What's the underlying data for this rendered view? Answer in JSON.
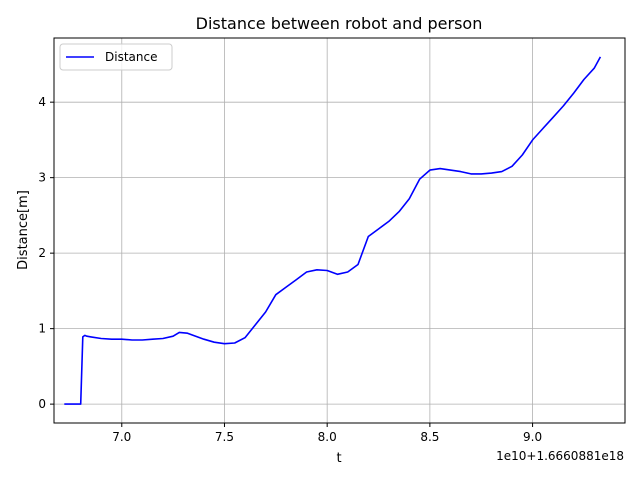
{
  "chart_data": {
    "type": "line",
    "title": "Distance between robot and person",
    "xlabel": "t",
    "ylabel": "Distance[m]",
    "x_offset_label": "1e10+1.6660881e18",
    "xlim": [
      6.67,
      9.45
    ],
    "ylim": [
      -0.25,
      4.85
    ],
    "x_ticks": [
      7.0,
      7.5,
      8.0,
      8.5,
      9.0
    ],
    "x_tick_labels": [
      "7.0",
      "7.5",
      "8.0",
      "8.5",
      "9.0"
    ],
    "y_ticks": [
      0,
      1,
      2,
      3,
      4
    ],
    "y_tick_labels": [
      "0",
      "1",
      "2",
      "3",
      "4"
    ],
    "grid": true,
    "legend_position": "upper-left",
    "series": [
      {
        "name": "Distance",
        "color": "#0000ff",
        "points": [
          [
            6.72,
            0.0
          ],
          [
            6.8,
            0.0
          ],
          [
            6.81,
            0.89
          ],
          [
            6.82,
            0.91
          ],
          [
            6.83,
            0.9
          ],
          [
            6.85,
            0.89
          ],
          [
            6.9,
            0.87
          ],
          [
            6.95,
            0.86
          ],
          [
            7.0,
            0.86
          ],
          [
            7.05,
            0.85
          ],
          [
            7.1,
            0.85
          ],
          [
            7.15,
            0.86
          ],
          [
            7.2,
            0.87
          ],
          [
            7.25,
            0.9
          ],
          [
            7.28,
            0.95
          ],
          [
            7.32,
            0.94
          ],
          [
            7.4,
            0.86
          ],
          [
            7.45,
            0.82
          ],
          [
            7.5,
            0.8
          ],
          [
            7.55,
            0.81
          ],
          [
            7.6,
            0.88
          ],
          [
            7.65,
            1.05
          ],
          [
            7.7,
            1.22
          ],
          [
            7.75,
            1.45
          ],
          [
            7.8,
            1.55
          ],
          [
            7.85,
            1.65
          ],
          [
            7.9,
            1.75
          ],
          [
            7.95,
            1.78
          ],
          [
            8.0,
            1.77
          ],
          [
            8.05,
            1.72
          ],
          [
            8.1,
            1.75
          ],
          [
            8.15,
            1.85
          ],
          [
            8.2,
            2.22
          ],
          [
            8.25,
            2.32
          ],
          [
            8.3,
            2.42
          ],
          [
            8.35,
            2.55
          ],
          [
            8.4,
            2.72
          ],
          [
            8.45,
            2.98
          ],
          [
            8.5,
            3.1
          ],
          [
            8.55,
            3.12
          ],
          [
            8.6,
            3.1
          ],
          [
            8.65,
            3.08
          ],
          [
            8.7,
            3.05
          ],
          [
            8.75,
            3.05
          ],
          [
            8.8,
            3.06
          ],
          [
            8.85,
            3.08
          ],
          [
            8.9,
            3.15
          ],
          [
            8.95,
            3.3
          ],
          [
            9.0,
            3.5
          ],
          [
            9.05,
            3.65
          ],
          [
            9.1,
            3.8
          ],
          [
            9.15,
            3.95
          ],
          [
            9.2,
            4.12
          ],
          [
            9.25,
            4.3
          ],
          [
            9.3,
            4.45
          ],
          [
            9.33,
            4.6
          ]
        ]
      }
    ]
  }
}
